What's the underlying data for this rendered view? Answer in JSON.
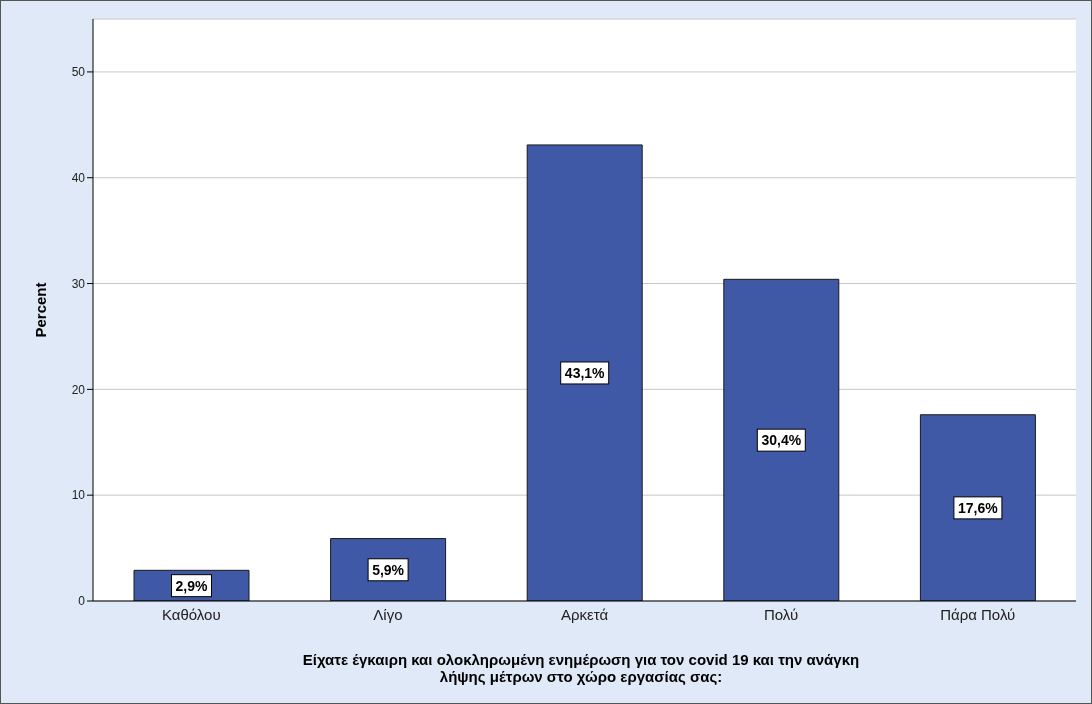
{
  "chart_data": {
    "type": "bar",
    "ylabel": "Percent",
    "xlabel": "Είχατε έγκαιρη και ολοκληρωμένη ενημέρωση για τον covid 19 και την ανάγκη λήψης μέτρων στο χώρο εργασίας σας:",
    "categories": [
      "Καθόλου",
      "Λίγο",
      "Αρκετά",
      "Πολύ",
      "Πάρα Πολύ"
    ],
    "values": [
      2.9,
      5.9,
      43.1,
      30.4,
      17.6
    ],
    "value_labels": [
      "2,9%",
      "5,9%",
      "43,1%",
      "30,4%",
      "17,6%"
    ],
    "color": "#3f59a7",
    "ylim": [
      0,
      55
    ],
    "yticks": [
      0,
      10,
      20,
      30,
      40,
      50
    ],
    "grid": "y"
  }
}
